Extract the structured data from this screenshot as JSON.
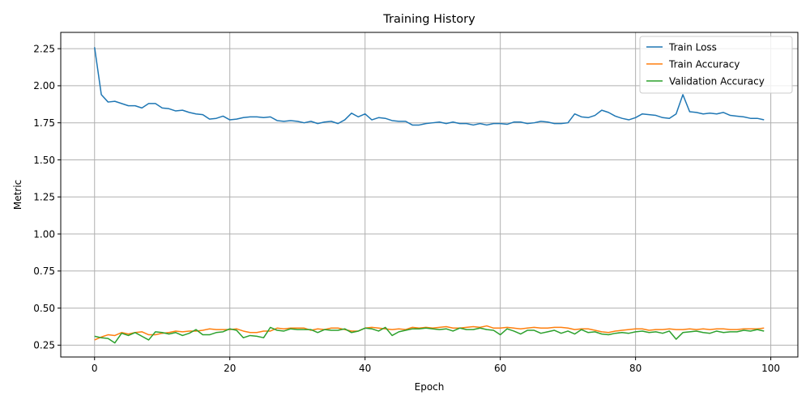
{
  "chart_data": {
    "type": "line",
    "title": "Training History",
    "xlabel": "Epoch",
    "ylabel": "Metric",
    "xlim": [
      -5,
      104
    ],
    "ylim": [
      0.17,
      2.36
    ],
    "xticks": [
      0,
      20,
      40,
      60,
      80,
      100
    ],
    "xtick_labels": [
      "0",
      "20",
      "40",
      "60",
      "80",
      "100"
    ],
    "yticks": [
      0.25,
      0.5,
      0.75,
      1.0,
      1.25,
      1.5,
      1.75,
      2.0,
      2.25
    ],
    "ytick_labels": [
      "0.25",
      "0.50",
      "0.75",
      "1.00",
      "1.25",
      "1.50",
      "1.75",
      "2.00",
      "2.25"
    ],
    "grid": true,
    "legend_position": "top-right",
    "series": [
      {
        "name": "Train Loss",
        "color": "#1f77b4",
        "values": [
          2.26,
          1.94,
          1.89,
          1.895,
          1.88,
          1.865,
          1.865,
          1.85,
          1.88,
          1.88,
          1.85,
          1.845,
          1.83,
          1.835,
          1.82,
          1.81,
          1.805,
          1.775,
          1.78,
          1.795,
          1.77,
          1.775,
          1.785,
          1.79,
          1.79,
          1.785,
          1.79,
          1.765,
          1.76,
          1.765,
          1.76,
          1.75,
          1.76,
          1.745,
          1.755,
          1.76,
          1.745,
          1.77,
          1.815,
          1.79,
          1.81,
          1.77,
          1.785,
          1.78,
          1.765,
          1.76,
          1.76,
          1.735,
          1.735,
          1.745,
          1.75,
          1.755,
          1.745,
          1.755,
          1.745,
          1.745,
          1.735,
          1.745,
          1.735,
          1.745,
          1.745,
          1.74,
          1.755,
          1.755,
          1.745,
          1.75,
          1.76,
          1.755,
          1.745,
          1.745,
          1.75,
          1.81,
          1.79,
          1.785,
          1.8,
          1.835,
          1.82,
          1.795,
          1.78,
          1.77,
          1.785,
          1.81,
          1.805,
          1.8,
          1.785,
          1.78,
          1.81,
          1.94,
          1.825,
          1.82,
          1.81,
          1.815,
          1.81,
          1.82,
          1.8,
          1.795,
          1.79,
          1.78,
          1.78,
          1.77
        ]
      },
      {
        "name": "Train Accuracy",
        "color": "#ff7f0e",
        "values": [
          0.285,
          0.305,
          0.32,
          0.315,
          0.335,
          0.325,
          0.335,
          0.34,
          0.32,
          0.32,
          0.33,
          0.335,
          0.345,
          0.34,
          0.345,
          0.345,
          0.35,
          0.36,
          0.355,
          0.355,
          0.355,
          0.36,
          0.345,
          0.335,
          0.335,
          0.345,
          0.345,
          0.365,
          0.36,
          0.365,
          0.365,
          0.365,
          0.35,
          0.36,
          0.355,
          0.365,
          0.365,
          0.355,
          0.345,
          0.345,
          0.365,
          0.37,
          0.365,
          0.36,
          0.355,
          0.36,
          0.355,
          0.37,
          0.365,
          0.37,
          0.365,
          0.37,
          0.375,
          0.365,
          0.365,
          0.37,
          0.375,
          0.37,
          0.38,
          0.365,
          0.365,
          0.37,
          0.365,
          0.36,
          0.365,
          0.37,
          0.365,
          0.365,
          0.37,
          0.37,
          0.365,
          0.355,
          0.36,
          0.36,
          0.35,
          0.34,
          0.335,
          0.345,
          0.35,
          0.355,
          0.36,
          0.36,
          0.35,
          0.355,
          0.355,
          0.36,
          0.355,
          0.355,
          0.36,
          0.355,
          0.36,
          0.355,
          0.36,
          0.36,
          0.355,
          0.355,
          0.36,
          0.36,
          0.36,
          0.365
        ]
      },
      {
        "name": "Validation Accuracy",
        "color": "#2ca02c",
        "values": [
          0.31,
          0.3,
          0.295,
          0.265,
          0.33,
          0.315,
          0.335,
          0.31,
          0.285,
          0.34,
          0.335,
          0.325,
          0.335,
          0.315,
          0.33,
          0.355,
          0.32,
          0.32,
          0.335,
          0.34,
          0.36,
          0.35,
          0.3,
          0.315,
          0.31,
          0.3,
          0.37,
          0.35,
          0.345,
          0.36,
          0.355,
          0.355,
          0.355,
          0.335,
          0.355,
          0.35,
          0.35,
          0.36,
          0.335,
          0.345,
          0.365,
          0.36,
          0.345,
          0.37,
          0.315,
          0.34,
          0.35,
          0.36,
          0.36,
          0.365,
          0.36,
          0.355,
          0.36,
          0.345,
          0.365,
          0.355,
          0.355,
          0.365,
          0.355,
          0.35,
          0.32,
          0.36,
          0.345,
          0.325,
          0.35,
          0.35,
          0.33,
          0.34,
          0.35,
          0.33,
          0.345,
          0.325,
          0.355,
          0.335,
          0.34,
          0.325,
          0.32,
          0.33,
          0.335,
          0.33,
          0.34,
          0.345,
          0.335,
          0.34,
          0.33,
          0.345,
          0.29,
          0.335,
          0.34,
          0.345,
          0.335,
          0.33,
          0.345,
          0.335,
          0.34,
          0.34,
          0.35,
          0.345,
          0.355,
          0.345
        ]
      }
    ]
  }
}
